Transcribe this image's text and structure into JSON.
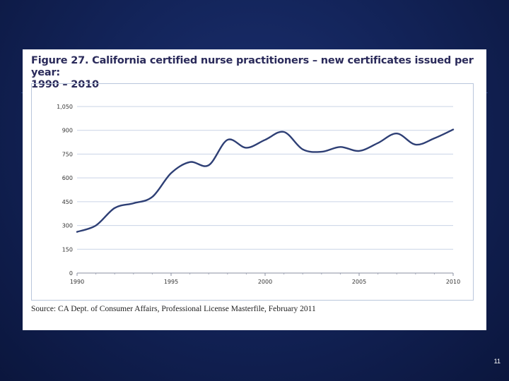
{
  "slide": {
    "page_number": "11"
  },
  "figure": {
    "title_line1": "Figure 27. California certified nurse practitioners – new certificates issued per year:",
    "title_line2": "1990 – 2010",
    "source": "Source: CA Dept. of Consumer Affairs, Professional License Masterfile, February 2011"
  },
  "chart_data": {
    "type": "line",
    "title": "California certified nurse practitioners – new certificates issued per year: 1990 – 2010",
    "xlabel": "",
    "ylabel": "",
    "xlim": [
      1990,
      2010
    ],
    "ylim": [
      0,
      1050
    ],
    "grid": true,
    "xticks": [
      1990,
      1995,
      2000,
      2005,
      2010
    ],
    "xtick_labels": [
      "1990",
      "1995",
      "2000",
      "2005",
      "2010"
    ],
    "yticks": [
      0,
      150,
      300,
      450,
      600,
      750,
      900,
      1050
    ],
    "ytick_labels": [
      "0",
      "150",
      "300",
      "450",
      "600",
      "750",
      "900",
      "1,050"
    ],
    "series": [
      {
        "name": "New certificates issued",
        "color": "#2e3f75",
        "x": [
          1990,
          1991,
          1992,
          1993,
          1994,
          1995,
          1996,
          1997,
          1998,
          1999,
          2000,
          2001,
          2002,
          2003,
          2004,
          2005,
          2006,
          2007,
          2008,
          2009,
          2010
        ],
        "y": [
          260,
          300,
          410,
          440,
          480,
          630,
          700,
          680,
          840,
          790,
          840,
          890,
          780,
          765,
          795,
          770,
          820,
          880,
          810,
          850,
          905
        ]
      }
    ]
  }
}
